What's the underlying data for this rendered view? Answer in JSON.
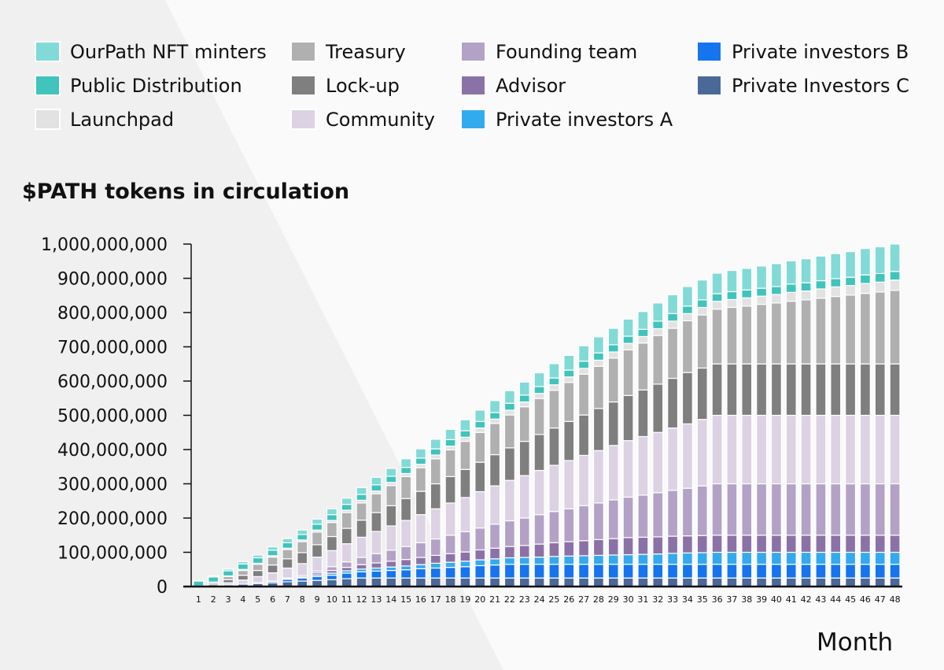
{
  "chart_data": {
    "type": "bar",
    "stacked": true,
    "title": "$PATH tokens in circulation",
    "xlabel": "Month",
    "ylabel": "",
    "units": "tokens (millions in series values)",
    "value_scale": 1000000,
    "ylim": [
      0,
      1000000000
    ],
    "yticks": [
      0,
      100000000,
      200000000,
      300000000,
      400000000,
      500000000,
      600000000,
      700000000,
      800000000,
      900000000,
      1000000000
    ],
    "ytick_labels": [
      "0",
      "100,000,000",
      "200,000,000",
      "300,000,000",
      "400,000,000",
      "500,000,000",
      "600,000,000",
      "700,000,000",
      "800,000,000",
      "900,000,000",
      "1,000,000,000"
    ],
    "grid": false,
    "legend_position": "top",
    "categories": [
      "1",
      "2",
      "3",
      "4",
      "5",
      "6",
      "7",
      "8",
      "9",
      "10",
      "11",
      "12",
      "13",
      "14",
      "15",
      "16",
      "17",
      "18",
      "19",
      "20",
      "21",
      "22",
      "23",
      "24",
      "25",
      "26",
      "27",
      "28",
      "29",
      "30",
      "31",
      "32",
      "33",
      "34",
      "35",
      "36",
      "37",
      "38",
      "39",
      "40",
      "41",
      "42",
      "43",
      "44",
      "45",
      "46",
      "47",
      "48"
    ],
    "stack_order_bottom_to_top": [
      "Private Investors C",
      "Private investors B",
      "Private investors A",
      "Advisor",
      "Founding team",
      "Community",
      "Lock-up",
      "Treasury",
      "Launchpad",
      "Public Distribution",
      "OurPath NFT minters"
    ],
    "series": [
      {
        "name": "Private Investors C",
        "color": "#4a6898",
        "values": [
          0,
          2,
          5,
          7,
          9,
          11,
          14,
          16,
          18,
          20,
          23,
          25,
          25,
          25,
          25,
          25,
          25,
          25,
          25,
          25,
          25,
          25,
          25,
          25,
          25,
          25,
          25,
          25,
          25,
          25,
          25,
          25,
          25,
          25,
          25,
          25,
          25,
          25,
          25,
          25,
          25,
          25,
          25,
          25,
          25,
          25,
          25,
          25
        ]
      },
      {
        "name": "Private investors B",
        "color": "#1574ee",
        "values": [
          0,
          0,
          0,
          0,
          2,
          4,
          7,
          9,
          11,
          13,
          16,
          18,
          20,
          22,
          24,
          27,
          29,
          31,
          33,
          36,
          38,
          40,
          40,
          40,
          40,
          40,
          40,
          40,
          40,
          40,
          40,
          40,
          40,
          40,
          40,
          40,
          40,
          40,
          40,
          40,
          40,
          40,
          40,
          40,
          40,
          40,
          40,
          40
        ]
      },
      {
        "name": "Private investors A",
        "color": "#33aaee",
        "values": [
          0,
          0,
          0,
          0,
          0,
          1,
          2,
          3,
          5,
          6,
          7,
          8,
          9,
          10,
          11,
          12,
          14,
          15,
          16,
          17,
          18,
          19,
          20,
          21,
          23,
          24,
          25,
          26,
          27,
          28,
          29,
          30,
          32,
          33,
          34,
          35,
          35,
          35,
          35,
          35,
          35,
          35,
          35,
          35,
          35,
          35,
          35,
          35
        ]
      },
      {
        "name": "Advisor",
        "color": "#8b72a6",
        "values": [
          0,
          0,
          0,
          0,
          0,
          0,
          2,
          4,
          6,
          8,
          10,
          13,
          15,
          17,
          19,
          21,
          23,
          25,
          27,
          29,
          31,
          33,
          35,
          38,
          40,
          42,
          44,
          46,
          48,
          50,
          50,
          50,
          50,
          50,
          50,
          50,
          50,
          50,
          50,
          50,
          50,
          50,
          50,
          50,
          50,
          50,
          50,
          50
        ]
      },
      {
        "name": "Founding team",
        "color": "#b3a2c6",
        "values": [
          0,
          0,
          0,
          0,
          0,
          0,
          0,
          0,
          5,
          11,
          16,
          21,
          27,
          32,
          38,
          43,
          48,
          54,
          59,
          64,
          70,
          75,
          80,
          86,
          91,
          96,
          102,
          107,
          113,
          118,
          123,
          129,
          134,
          139,
          145,
          150,
          150,
          150,
          150,
          150,
          150,
          150,
          150,
          150,
          150,
          150,
          150,
          150
        ]
      },
      {
        "name": "Community",
        "color": "#dcd2e3",
        "values": [
          0,
          0,
          6,
          12,
          18,
          24,
          29,
          35,
          41,
          47,
          53,
          59,
          65,
          71,
          76,
          82,
          88,
          94,
          100,
          106,
          112,
          118,
          124,
          129,
          135,
          141,
          147,
          153,
          159,
          165,
          171,
          176,
          182,
          188,
          194,
          200,
          200,
          200,
          200,
          200,
          200,
          200,
          200,
          200,
          200,
          200,
          200,
          200
        ]
      },
      {
        "name": "Lock-up",
        "color": "#7f7f7f",
        "values": [
          0,
          5,
          9,
          14,
          18,
          23,
          27,
          32,
          36,
          41,
          45,
          50,
          55,
          59,
          64,
          68,
          73,
          77,
          82,
          86,
          91,
          95,
          100,
          105,
          109,
          114,
          118,
          123,
          127,
          132,
          136,
          141,
          145,
          150,
          150,
          150,
          150,
          150,
          150,
          150,
          150,
          150,
          150,
          150,
          150,
          150,
          150,
          150
        ]
      },
      {
        "name": "Treasury",
        "color": "#b0b0b0",
        "values": [
          0,
          5,
          9,
          14,
          18,
          23,
          27,
          32,
          37,
          41,
          46,
          50,
          55,
          59,
          64,
          69,
          73,
          78,
          82,
          87,
          91,
          96,
          101,
          105,
          110,
          114,
          119,
          123,
          128,
          133,
          137,
          142,
          146,
          151,
          155,
          160,
          165,
          169,
          174,
          178,
          183,
          187,
          192,
          197,
          201,
          206,
          210,
          215
        ]
      },
      {
        "name": "Launchpad",
        "color": "#e2e2e2",
        "values": [
          1,
          1,
          2,
          3,
          3,
          4,
          4,
          5,
          6,
          6,
          7,
          8,
          8,
          9,
          9,
          10,
          11,
          11,
          12,
          13,
          13,
          14,
          14,
          15,
          16,
          16,
          17,
          18,
          18,
          19,
          19,
          20,
          21,
          21,
          22,
          23,
          23,
          24,
          24,
          25,
          26,
          26,
          27,
          28,
          28,
          29,
          29,
          30
        ]
      },
      {
        "name": "Public Distribution",
        "color": "#40c4bc",
        "values": [
          15,
          15,
          15,
          16,
          16,
          16,
          16,
          16,
          17,
          17,
          17,
          17,
          18,
          18,
          18,
          18,
          18,
          19,
          19,
          19,
          19,
          20,
          20,
          20,
          20,
          20,
          21,
          21,
          21,
          21,
          21,
          22,
          22,
          22,
          22,
          22,
          23,
          23,
          23,
          23,
          24,
          24,
          24,
          24,
          24,
          25,
          25,
          25
        ]
      },
      {
        "name": "OurPath NFT minters",
        "color": "#82dad6",
        "values": [
          2,
          3,
          5,
          7,
          8,
          10,
          12,
          13,
          15,
          17,
          18,
          20,
          22,
          23,
          25,
          27,
          28,
          30,
          32,
          33,
          35,
          37,
          38,
          40,
          42,
          43,
          45,
          47,
          48,
          50,
          52,
          53,
          55,
          57,
          58,
          60,
          62,
          63,
          65,
          67,
          68,
          70,
          72,
          73,
          75,
          77,
          78,
          80
        ]
      }
    ]
  },
  "legend": {
    "items": [
      {
        "label": "OurPath NFT minters",
        "color": "#82dad6"
      },
      {
        "label": "Public Distribution",
        "color": "#40c4bc"
      },
      {
        "label": "Launchpad",
        "color": "#e2e2e2"
      },
      {
        "label": "Treasury",
        "color": "#b0b0b0"
      },
      {
        "label": "Lock-up",
        "color": "#7f7f7f"
      },
      {
        "label": "Community",
        "color": "#dcd2e3"
      },
      {
        "label": "Founding team",
        "color": "#b3a2c6"
      },
      {
        "label": "Advisor",
        "color": "#8b72a6"
      },
      {
        "label": "Private investors A",
        "color": "#33aaee"
      },
      {
        "label": "Private investors B",
        "color": "#1574ee"
      },
      {
        "label": "Private Investors C",
        "color": "#4a6898"
      }
    ]
  }
}
